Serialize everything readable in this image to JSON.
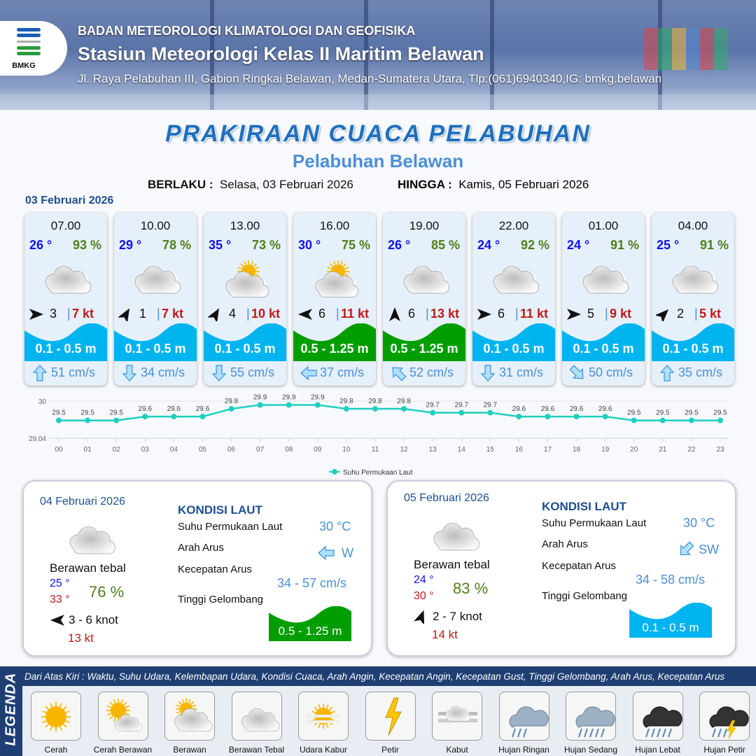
{
  "header": {
    "logo_text": "BMKG",
    "agency": "BADAN METEOROLOGI KLIMATOLOGI DAN GEOFISIKA",
    "station": "Stasiun Meteorologi Kelas II Maritim Belawan",
    "address": "Jl. Raya Pelabuhan III, Gabion Ringkai Belawan, Medan-Sumatera Utara, Tlp:(061)6940340,IG: bmkg.belawan"
  },
  "title": "PRAKIRAAN CUACA PELABUHAN",
  "subtitle": "Pelabuhan Belawan",
  "validity": {
    "from_label": "BERLAKU :",
    "from": "Selasa, 03 Februari 2026",
    "to_label": "HINGGA :",
    "to": "Kamis, 05 Februari 2026"
  },
  "colors": {
    "wave_low": "#00b4f0",
    "wave_mid": "#009e00",
    "temp": "#1010f0",
    "humidity": "#4d7f1a",
    "gust": "#c01818",
    "chart_line": "#1fcfc0"
  },
  "day1": {
    "date": "03 Februari 2026",
    "forecasts": [
      {
        "time": "07.00",
        "temp": "26 °",
        "humidity": "93 %",
        "weather": "berawan-tebal",
        "wind_dir_deg": 90,
        "wind_speed": "3",
        "gust": "7 kt",
        "wave": "0.1 - 0.5 m",
        "wave_level": "low",
        "current_dir": "up",
        "current": "51 cm/s"
      },
      {
        "time": "10.00",
        "temp": "29 °",
        "humidity": "78 %",
        "weather": "berawan-tebal",
        "wind_dir_deg": 30,
        "wind_speed": "1",
        "gust": "7 kt",
        "wave": "0.1 - 0.5 m",
        "wave_level": "low",
        "current_dir": "down",
        "current": "34 cm/s"
      },
      {
        "time": "13.00",
        "temp": "35 °",
        "humidity": "73 %",
        "weather": "berawan",
        "wind_dir_deg": 30,
        "wind_speed": "4",
        "gust": "10 kt",
        "wave": "0.1 - 0.5 m",
        "wave_level": "low",
        "current_dir": "down",
        "current": "55 cm/s"
      },
      {
        "time": "16.00",
        "temp": "30 °",
        "humidity": "75 %",
        "weather": "berawan",
        "wind_dir_deg": 270,
        "wind_speed": "6",
        "gust": "11 kt",
        "wave": "0.5 - 1.25 m",
        "wave_level": "mid",
        "current_dir": "left",
        "current": "37 cm/s"
      },
      {
        "time": "19.00",
        "temp": "26 °",
        "humidity": "85 %",
        "weather": "berawan-tebal",
        "wind_dir_deg": 0,
        "wind_speed": "6",
        "gust": "13 kt",
        "wave": "0.5 - 1.25 m",
        "wave_level": "mid",
        "current_dir": "up-left",
        "current": "52 cm/s"
      },
      {
        "time": "22.00",
        "temp": "24 °",
        "humidity": "92 %",
        "weather": "berawan-tebal",
        "wind_dir_deg": 90,
        "wind_speed": "6",
        "gust": "11 kt",
        "wave": "0.1 - 0.5 m",
        "wave_level": "low",
        "current_dir": "down",
        "current": "31 cm/s"
      },
      {
        "time": "01.00",
        "temp": "24 °",
        "humidity": "91 %",
        "weather": "berawan-tebal",
        "wind_dir_deg": 90,
        "wind_speed": "5",
        "gust": "9 kt",
        "wave": "0.1 - 0.5 m",
        "wave_level": "low",
        "current_dir": "down-right",
        "current": "50 cm/s"
      },
      {
        "time": "04.00",
        "temp": "25 °",
        "humidity": "91 %",
        "weather": "berawan-tebal",
        "wind_dir_deg": 45,
        "wind_speed": "2",
        "gust": "5 kt",
        "wave": "0.1 - 0.5 m",
        "wave_level": "low",
        "current_dir": "up",
        "current": "35 cm/s"
      }
    ]
  },
  "chart_data": {
    "type": "line",
    "categories": [
      "00",
      "01",
      "02",
      "03",
      "04",
      "05",
      "06",
      "07",
      "08",
      "09",
      "10",
      "11",
      "12",
      "13",
      "14",
      "15",
      "16",
      "17",
      "18",
      "19",
      "20",
      "21",
      "22",
      "23"
    ],
    "series": [
      {
        "name": "Suhu Permukaan Laut",
        "values": [
          29.5,
          29.5,
          29.5,
          29.6,
          29.6,
          29.6,
          29.8,
          29.9,
          29.9,
          29.9,
          29.8,
          29.8,
          29.8,
          29.7,
          29.7,
          29.7,
          29.6,
          29.6,
          29.6,
          29.6,
          29.5,
          29.5,
          29.5,
          29.5
        ]
      }
    ],
    "ylim": [
      29.04,
      30
    ],
    "yticks": [
      "30",
      "29.04"
    ],
    "legend": "bottom",
    "grid": true
  },
  "days": [
    {
      "date": "04 Februari 2026",
      "weather": "berawan-tebal",
      "condition": "Berawan tebal",
      "tmin": "25 °",
      "tmax": "33 °",
      "humidity": "76 %",
      "wind_dir_deg": 270,
      "wind": "3  - 6 knot",
      "gust": "13 kt",
      "sea": {
        "title": "KONDISI LAUT",
        "sst_label": "Suhu Permukaan Laut",
        "sst": "30 °C",
        "dir_label": "Arah Arus",
        "dir": "W",
        "speed_label": "Kecepatan Arus",
        "speed": "34 - 57 cm/s",
        "wave_label": "Tinggi Gelombang",
        "wave": "0.5 - 1.25 m",
        "wave_level": "mid"
      }
    },
    {
      "date": "05 Februari 2026",
      "weather": "berawan-tebal",
      "condition": "Berawan tebal",
      "tmin": "24 °",
      "tmax": "30 °",
      "humidity": "83 %",
      "wind_dir_deg": 20,
      "wind": "2  - 7 knot",
      "gust": "14 kt",
      "sea": {
        "title": "KONDISI LAUT",
        "sst_label": "Suhu Permukaan Laut",
        "sst": "30 °C",
        "dir_label": "Arah Arus",
        "dir": "SW",
        "speed_label": "Kecepatan Arus",
        "speed": "34  - 58 cm/s",
        "wave_label": "Tinggi Gelombang",
        "wave": "0.1 - 0.5 m",
        "wave_level": "low"
      }
    }
  ],
  "legend": {
    "title": "LEGENDA",
    "description": "Dari Atas Kiri : Waktu, Suhu Udara, Kelembapan Udara, Kondisi Cuaca, Arah Angin, Kecepatan Angin, Kecepatan Gust, Tinggi Gelombang, Arah Arus, Kecepatan Arus",
    "items": [
      {
        "label": "Cerah",
        "icon": "cerah"
      },
      {
        "label": "Cerah Berawan",
        "icon": "cerah-berawan"
      },
      {
        "label": "Berawan",
        "icon": "berawan"
      },
      {
        "label": "Berawan Tebal",
        "icon": "berawan-tebal"
      },
      {
        "label": "Udara Kabur",
        "icon": "udara-kabur"
      },
      {
        "label": "Petir",
        "icon": "petir"
      },
      {
        "label": "Kabut",
        "icon": "kabut"
      },
      {
        "label": "Hujan Ringan",
        "icon": "hujan-ringan"
      },
      {
        "label": "Hujan Sedang",
        "icon": "hujan-sedang"
      },
      {
        "label": "Hujan Lebat",
        "icon": "hujan-lebat"
      },
      {
        "label": "Hujan Petir",
        "icon": "hujan-petir"
      }
    ]
  }
}
